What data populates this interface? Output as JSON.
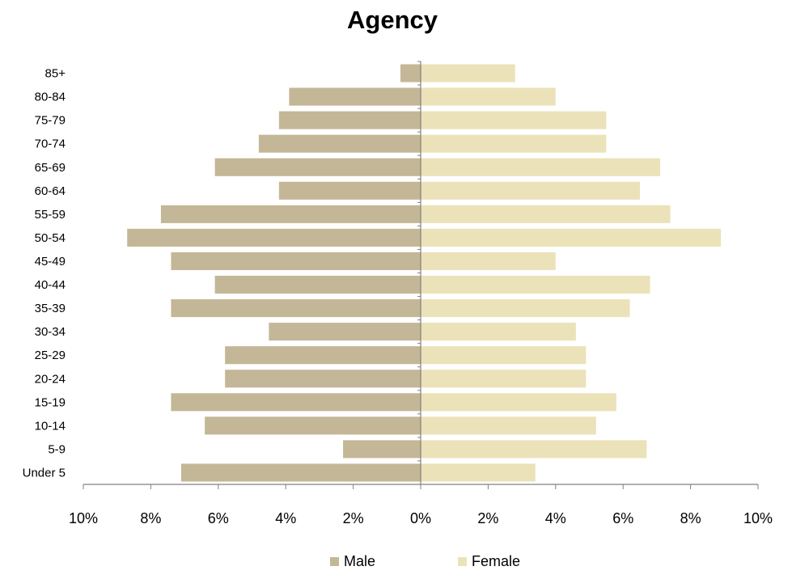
{
  "chart_data": {
    "type": "bar",
    "orientation": "horizontal",
    "layout": "population-pyramid",
    "title": "Agency",
    "xlabel": "",
    "ylabel": "",
    "categories": [
      "Under 5",
      "5-9",
      "10-14",
      "15-19",
      "20-24",
      "25-29",
      "30-34",
      "35-39",
      "40-44",
      "45-49",
      "50-54",
      "55-59",
      "60-64",
      "65-69",
      "70-74",
      "75-79",
      "80-84",
      "85+"
    ],
    "series": [
      {
        "name": "Male",
        "side": "left",
        "color": "#c4b797",
        "values": [
          7.1,
          2.3,
          6.4,
          7.4,
          5.8,
          5.8,
          4.5,
          7.4,
          6.1,
          7.4,
          8.7,
          7.7,
          4.2,
          6.1,
          4.8,
          4.2,
          3.9,
          0.6
        ]
      },
      {
        "name": "Female",
        "side": "right",
        "color": "#ebe2b9",
        "values": [
          3.4,
          6.7,
          5.2,
          5.8,
          4.9,
          4.9,
          4.6,
          6.2,
          6.8,
          4.0,
          8.9,
          7.4,
          6.5,
          7.1,
          5.5,
          5.5,
          4.0,
          2.8
        ]
      }
    ],
    "xlim": [
      -10,
      10
    ],
    "xticks": [
      -10,
      -8,
      -6,
      -4,
      -2,
      0,
      2,
      4,
      6,
      8,
      10
    ],
    "xtick_labels": [
      "10%",
      "8%",
      "6%",
      "4%",
      "2%",
      "0%",
      "2%",
      "4%",
      "6%",
      "8%",
      "10%"
    ],
    "grid": false,
    "legend": {
      "position": "bottom",
      "entries": [
        "Male",
        "Female"
      ]
    },
    "axis_color": "#808080"
  }
}
